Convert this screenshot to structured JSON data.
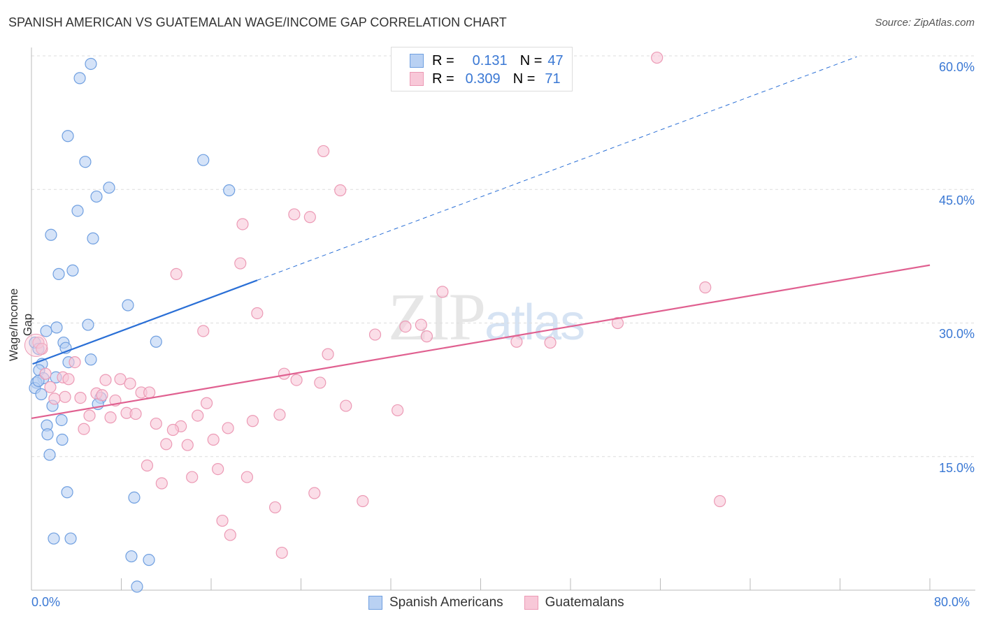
{
  "chart_data": {
    "type": "scatter",
    "title": "SPANISH AMERICAN VS GUATEMALAN WAGE/INCOME GAP CORRELATION CHART",
    "source": "Source: ZipAtlas.com",
    "xlabel": "",
    "ylabel": "Wage/Income Gap",
    "xlim": [
      0,
      80
    ],
    "ylim": [
      0,
      61
    ],
    "x_tick_labels": [
      "0.0%",
      "80.0%"
    ],
    "y_ticks": [
      15,
      30,
      45,
      60
    ],
    "y_tick_labels": [
      "15.0%",
      "30.0%",
      "45.0%",
      "60.0%"
    ],
    "grid": true,
    "legend_position": "top-center",
    "watermark": "ZIPatlas",
    "series": [
      {
        "name": "Spanish Americans",
        "color": "#6f9fe0",
        "fill": "#b9d1f3",
        "line_color": "#2a6fd6",
        "R": "0.131",
        "N": "47",
        "trend": {
          "x0": 0.1,
          "y0": 25.4,
          "x_solid_end": 20.1,
          "x1": 73.5,
          "y1": 59.9
        },
        "points": [
          [
            5.29,
            59.1
          ],
          [
            4.3,
            57.5
          ],
          [
            3.24,
            51.0
          ],
          [
            4.79,
            48.1
          ],
          [
            15.3,
            48.3
          ],
          [
            6.91,
            45.2
          ],
          [
            5.79,
            44.2
          ],
          [
            17.6,
            44.9
          ],
          [
            4.11,
            42.6
          ],
          [
            1.74,
            39.9
          ],
          [
            5.48,
            39.5
          ],
          [
            3.67,
            35.9
          ],
          [
            2.43,
            35.5
          ],
          [
            8.59,
            32.0
          ],
          [
            5.04,
            29.8
          ],
          [
            1.31,
            29.1
          ],
          [
            2.24,
            29.5
          ],
          [
            0.31,
            27.8
          ],
          [
            2.86,
            27.8
          ],
          [
            3.05,
            27.2
          ],
          [
            11.1,
            27.9
          ],
          [
            0.62,
            27.1
          ],
          [
            3.3,
            25.6
          ],
          [
            5.29,
            25.9
          ],
          [
            0.93,
            25.4
          ],
          [
            0.68,
            24.7
          ],
          [
            2.18,
            23.9
          ],
          [
            1.06,
            23.8
          ],
          [
            0.44,
            23.3
          ],
          [
            0.31,
            22.7
          ],
          [
            0.87,
            22.0
          ],
          [
            6.16,
            21.6
          ],
          [
            5.92,
            20.9
          ],
          [
            1.87,
            20.7
          ],
          [
            2.68,
            19.1
          ],
          [
            1.37,
            18.5
          ],
          [
            1.43,
            17.5
          ],
          [
            2.74,
            16.9
          ],
          [
            1.62,
            15.2
          ],
          [
            3.18,
            11.0
          ],
          [
            9.15,
            10.4
          ],
          [
            1.99,
            5.8
          ],
          [
            3.49,
            5.8
          ],
          [
            8.9,
            3.8
          ],
          [
            10.46,
            3.4
          ],
          [
            9.4,
            0.4
          ],
          [
            0.62,
            23.5
          ]
        ]
      },
      {
        "name": "Guatemalans",
        "color": "#ec9ab5",
        "fill": "#f8c8d8",
        "line_color": "#e06090",
        "R": "0.309",
        "N": "71",
        "trend": {
          "x0": 0,
          "y0": 19.3,
          "x_solid_end": 80,
          "x1": 80,
          "y1": 36.5
        },
        "points": [
          [
            55.7,
            59.8
          ],
          [
            26.0,
            49.3
          ],
          [
            27.5,
            44.9
          ],
          [
            23.4,
            42.2
          ],
          [
            24.8,
            41.9
          ],
          [
            18.8,
            41.1
          ],
          [
            18.6,
            36.7
          ],
          [
            12.9,
            35.5
          ],
          [
            20.1,
            31.1
          ],
          [
            36.6,
            33.5
          ],
          [
            60.0,
            34.0
          ],
          [
            15.3,
            29.1
          ],
          [
            30.6,
            28.7
          ],
          [
            33.3,
            29.6
          ],
          [
            34.7,
            29.8
          ],
          [
            35.2,
            28.5
          ],
          [
            52.2,
            30.0
          ],
          [
            43.2,
            27.9
          ],
          [
            46.2,
            27.8
          ],
          [
            26.4,
            26.5
          ],
          [
            3.86,
            25.6
          ],
          [
            0.62,
            27.8
          ],
          [
            0.93,
            27.1
          ],
          [
            1.25,
            24.3
          ],
          [
            2.8,
            23.9
          ],
          [
            3.3,
            23.7
          ],
          [
            22.5,
            24.3
          ],
          [
            23.6,
            23.6
          ],
          [
            25.7,
            23.3
          ],
          [
            6.6,
            23.6
          ],
          [
            7.91,
            23.7
          ],
          [
            8.78,
            23.2
          ],
          [
            1.68,
            22.8
          ],
          [
            9.78,
            22.2
          ],
          [
            10.5,
            22.2
          ],
          [
            5.79,
            22.1
          ],
          [
            4.36,
            21.6
          ],
          [
            2.99,
            21.7
          ],
          [
            2.05,
            21.5
          ],
          [
            7.47,
            21.3
          ],
          [
            6.29,
            21.9
          ],
          [
            15.6,
            21.0
          ],
          [
            28.0,
            20.7
          ],
          [
            32.6,
            20.2
          ],
          [
            8.47,
            19.9
          ],
          [
            9.28,
            19.8
          ],
          [
            5.17,
            19.6
          ],
          [
            7.04,
            19.4
          ],
          [
            14.8,
            19.6
          ],
          [
            22.1,
            19.7
          ],
          [
            19.7,
            19.0
          ],
          [
            11.1,
            18.7
          ],
          [
            13.3,
            18.4
          ],
          [
            12.6,
            18.0
          ],
          [
            17.5,
            18.2
          ],
          [
            4.67,
            18.1
          ],
          [
            16.2,
            16.9
          ],
          [
            12.0,
            16.4
          ],
          [
            13.9,
            16.3
          ],
          [
            10.3,
            14.0
          ],
          [
            16.6,
            13.6
          ],
          [
            14.3,
            12.7
          ],
          [
            19.2,
            12.7
          ],
          [
            11.6,
            12.0
          ],
          [
            25.2,
            10.9
          ],
          [
            29.5,
            10.0
          ],
          [
            21.7,
            9.3
          ],
          [
            61.3,
            10.0
          ],
          [
            17.0,
            7.8
          ],
          [
            17.7,
            6.2
          ],
          [
            22.3,
            4.2
          ]
        ]
      }
    ]
  },
  "legend": {
    "r_label": "R =",
    "n_label": "N ="
  }
}
